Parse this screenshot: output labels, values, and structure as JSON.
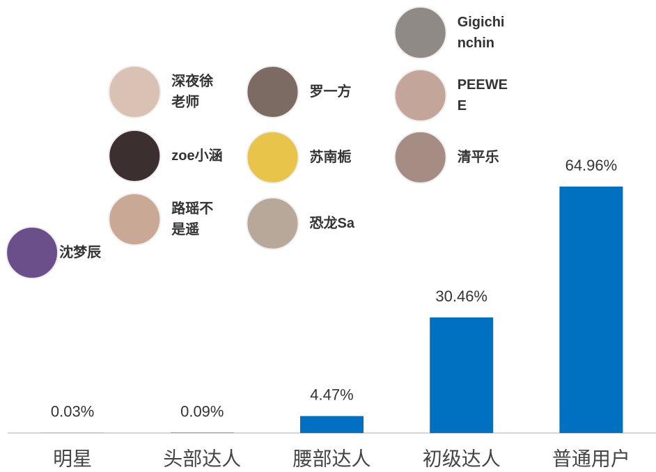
{
  "chart_data": {
    "type": "bar",
    "categories": [
      "明星",
      "头部达人",
      "腰部达人",
      "初级达人",
      "普通用户"
    ],
    "values": [
      0.03,
      0.09,
      4.47,
      30.46,
      64.96
    ],
    "value_labels": [
      "0.03%",
      "0.09%",
      "4.47%",
      "30.46%",
      "64.96%"
    ],
    "color": "#0070c0",
    "featured": [
      [
        "沈梦辰"
      ],
      [
        "深夜徐老师",
        "zoe小涵",
        "路瑶不是遥"
      ],
      [
        "罗一方",
        "苏南栀",
        "恐龙Sa"
      ],
      [
        "Gigichinchin",
        "PEEWEE",
        "清平乐"
      ],
      []
    ]
  }
}
